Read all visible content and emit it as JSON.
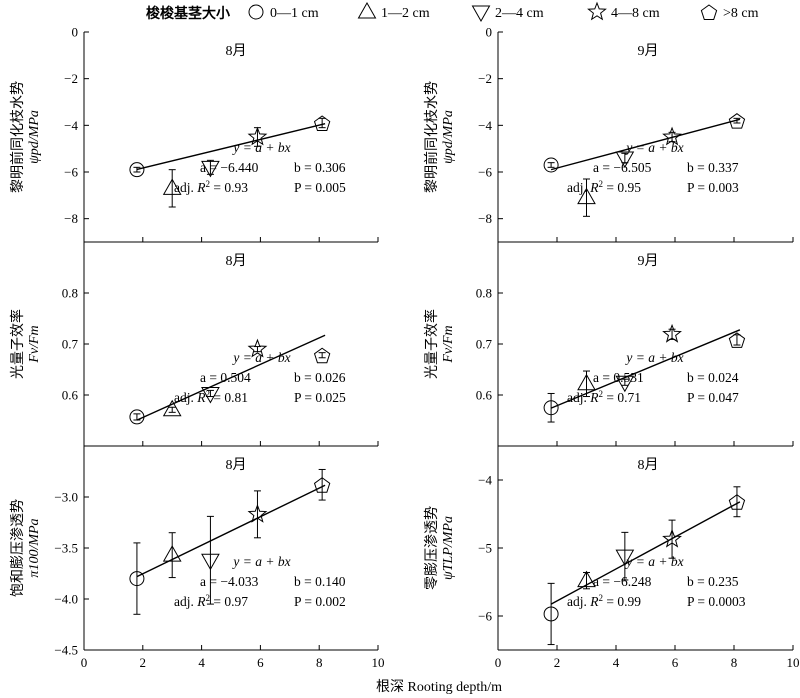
{
  "legend": {
    "title": "梭梭基茎大小",
    "items": [
      {
        "marker": "circle",
        "label": "0—1 cm"
      },
      {
        "marker": "triangle-up",
        "label": "1—2 cm"
      },
      {
        "marker": "triangle-down",
        "label": "2—4 cm"
      },
      {
        "marker": "star",
        "label": "4—8 cm"
      },
      {
        "marker": "pentagon",
        "label": ">8 cm"
      }
    ]
  },
  "xlabel": "根深 Rooting depth/m",
  "chart_data": [
    {
      "type": "scatter",
      "panel": "r1c1",
      "title": "8月",
      "ylabel_cn": "黎明前同化枝水势",
      "ylabel_sym": "ψpd/MPa",
      "xlim": [
        0,
        10
      ],
      "ylim": [
        -9,
        0
      ],
      "xticks": [
        0,
        2,
        4,
        6,
        8,
        10
      ],
      "yticks": [
        0,
        -2,
        -4,
        -6,
        -8
      ],
      "ytick_labels": [
        "0",
        "−2",
        "−4",
        "−6",
        "−8"
      ],
      "points": [
        {
          "marker": "circle",
          "x": 1.8,
          "y": -5.9,
          "err": 0.1
        },
        {
          "marker": "triangle-up",
          "x": 3.0,
          "y": -6.7,
          "err": 0.8
        },
        {
          "marker": "triangle-down",
          "x": 4.3,
          "y": -5.8,
          "err": 0.3
        },
        {
          "marker": "star",
          "x": 5.9,
          "y": -4.5,
          "err": 0.4
        },
        {
          "marker": "pentagon",
          "x": 8.1,
          "y": -3.9,
          "err": 0.2
        }
      ],
      "fit": {
        "a": -6.44,
        "b": 0.306,
        "x0": 1.8,
        "x1": 8.2
      },
      "ann": {
        "eq": "y = a + bx",
        "a": "a = −6.440",
        "b": "b = 0.306",
        "r2_pre": "adj.",
        "r2_val": "= 0.93",
        "p": "P = 0.005"
      }
    },
    {
      "type": "scatter",
      "panel": "r1c2",
      "title": "9月",
      "ylabel_cn": "黎明前同化枝水势",
      "ylabel_sym": "ψpd/MPa",
      "xlim": [
        0,
        10
      ],
      "ylim": [
        -9,
        0
      ],
      "xticks": [
        0,
        2,
        4,
        6,
        8,
        10
      ],
      "yticks": [
        0,
        -2,
        -4,
        -6,
        -8
      ],
      "ytick_labels": [
        "0",
        "−2",
        "−4",
        "−6",
        "−8"
      ],
      "points": [
        {
          "marker": "circle",
          "x": 1.8,
          "y": -5.7,
          "err": 0.1
        },
        {
          "marker": "triangle-up",
          "x": 3.0,
          "y": -7.1,
          "err": 0.8
        },
        {
          "marker": "triangle-down",
          "x": 4.3,
          "y": -5.4,
          "err": 0.2
        },
        {
          "marker": "star",
          "x": 5.9,
          "y": -4.5,
          "err": 0.2
        },
        {
          "marker": "pentagon",
          "x": 8.1,
          "y": -3.8,
          "err": 0.1
        }
      ],
      "fit": {
        "a": -6.505,
        "b": 0.337,
        "x0": 1.8,
        "x1": 8.2
      },
      "ann": {
        "eq": "y = a + bx",
        "a": "a = −6.505",
        "b": "b = 0.337",
        "r2_pre": "adj.",
        "r2_val": "= 0.95",
        "p": "P = 0.003"
      }
    },
    {
      "type": "scatter",
      "panel": "r2c1",
      "title": "8月",
      "ylabel_cn": "光量子效率",
      "ylabel_sym": "Fv/Fm",
      "xlim": [
        0,
        10
      ],
      "ylim": [
        0.5,
        0.9
      ],
      "xticks": [
        0,
        2,
        4,
        6,
        8,
        10
      ],
      "yticks": [
        0.5,
        0.6,
        0.7,
        0.8
      ],
      "ytick_labels": [
        "",
        "0.6",
        "0.7",
        "0.8"
      ],
      "points": [
        {
          "marker": "circle",
          "x": 1.8,
          "y": 0.557,
          "err": 0.006
        },
        {
          "marker": "triangle-up",
          "x": 3.0,
          "y": 0.571,
          "err": 0.005
        },
        {
          "marker": "triangle-down",
          "x": 4.3,
          "y": 0.603,
          "err": 0.006
        },
        {
          "marker": "star",
          "x": 5.9,
          "y": 0.69,
          "err": 0.005
        },
        {
          "marker": "pentagon",
          "x": 8.1,
          "y": 0.678,
          "err": 0.005
        }
      ],
      "fit": {
        "a": 0.504,
        "b": 0.026,
        "x0": 1.8,
        "x1": 8.2
      },
      "ann": {
        "eq": "y = a + bx",
        "a": "a = 0.504",
        "b": "b = 0.026",
        "r2_pre": "adj.",
        "r2_val": "= 0.81",
        "p": "P = 0.025"
      }
    },
    {
      "type": "scatter",
      "panel": "r2c2",
      "title": "9月",
      "ylabel_cn": "光量子效率",
      "ylabel_sym": "Fv/Fm",
      "xlim": [
        0,
        10
      ],
      "ylim": [
        0.5,
        0.9
      ],
      "xticks": [
        0,
        2,
        4,
        6,
        8,
        10
      ],
      "yticks": [
        0.5,
        0.6,
        0.7,
        0.8
      ],
      "ytick_labels": [
        "",
        "0.6",
        "0.7",
        "0.8"
      ],
      "points": [
        {
          "marker": "circle",
          "x": 1.8,
          "y": 0.575,
          "err": 0.028
        },
        {
          "marker": "triangle-up",
          "x": 3.0,
          "y": 0.622,
          "err": 0.025
        },
        {
          "marker": "triangle-down",
          "x": 4.3,
          "y": 0.625,
          "err": 0.006
        },
        {
          "marker": "star",
          "x": 5.9,
          "y": 0.719,
          "err": 0.01
        },
        {
          "marker": "pentagon",
          "x": 8.1,
          "y": 0.708,
          "err": 0.01
        }
      ],
      "fit": {
        "a": 0.531,
        "b": 0.024,
        "x0": 1.8,
        "x1": 8.2
      },
      "ann": {
        "eq": "y = a + bx",
        "a": "a = 0.531",
        "b": "b = 0.024",
        "r2_pre": "adj.",
        "r2_val": "= 0.71",
        "p": "P = 0.047"
      }
    },
    {
      "type": "scatter",
      "panel": "r3c1",
      "title": "8月",
      "ylabel_cn": "饱和膨压渗透势",
      "ylabel_sym": "π100/MPa",
      "xlim": [
        0,
        10
      ],
      "ylim": [
        -4.5,
        -2.5
      ],
      "xticks": [
        0,
        2,
        4,
        6,
        8,
        10
      ],
      "yticks": [
        -3.0,
        -3.5,
        -4.0,
        -4.5
      ],
      "ytick_labels": [
        "−3.0",
        "−3.5",
        "−4.0",
        "−4.5"
      ],
      "points": [
        {
          "marker": "circle",
          "x": 1.8,
          "y": -3.8,
          "err": 0.35
        },
        {
          "marker": "triangle-up",
          "x": 3.0,
          "y": -3.57,
          "err": 0.22
        },
        {
          "marker": "triangle-down",
          "x": 4.3,
          "y": -3.62,
          "err": 0.43
        },
        {
          "marker": "star",
          "x": 5.9,
          "y": -3.17,
          "err": 0.23
        },
        {
          "marker": "pentagon",
          "x": 8.1,
          "y": -2.88,
          "err": 0.15
        }
      ],
      "fit": {
        "a": -4.033,
        "b": 0.14,
        "x0": 1.8,
        "x1": 8.2
      },
      "ann": {
        "eq": "y = a + bx",
        "a": "a = −4.033",
        "b": "b = 0.140",
        "r2_pre": "adj.",
        "r2_val": "= 0.97",
        "p": "P = 0.002"
      }
    },
    {
      "type": "scatter",
      "panel": "r3c2",
      "title": "8月",
      "ylabel_cn": "零膨压渗透势",
      "ylabel_sym": "ψTLP/MPa",
      "xlim": [
        0,
        10
      ],
      "ylim": [
        -6.5,
        -3.5
      ],
      "xticks": [
        0,
        2,
        4,
        6,
        8,
        10
      ],
      "yticks": [
        -4,
        -5,
        -6
      ],
      "ytick_labels": [
        "−4",
        "−5",
        "−6"
      ],
      "points": [
        {
          "marker": "circle",
          "x": 1.8,
          "y": -5.97,
          "err": 0.45
        },
        {
          "marker": "triangle-up",
          "x": 3.0,
          "y": -5.48,
          "err": 0.12
        },
        {
          "marker": "triangle-down",
          "x": 4.3,
          "y": -5.12,
          "err": 0.35
        },
        {
          "marker": "star",
          "x": 5.9,
          "y": -4.87,
          "err": 0.28
        },
        {
          "marker": "pentagon",
          "x": 8.1,
          "y": -4.32,
          "err": 0.22
        }
      ],
      "fit": {
        "a": -6.248,
        "b": 0.235,
        "x0": 1.8,
        "x1": 8.2
      },
      "ann": {
        "eq": "y = a + bx",
        "a": "a = −6.248",
        "b": "b = 0.235",
        "r2_pre": "adj.",
        "r2_val": "= 0.99",
        "p": "P = 0.0003"
      }
    }
  ]
}
